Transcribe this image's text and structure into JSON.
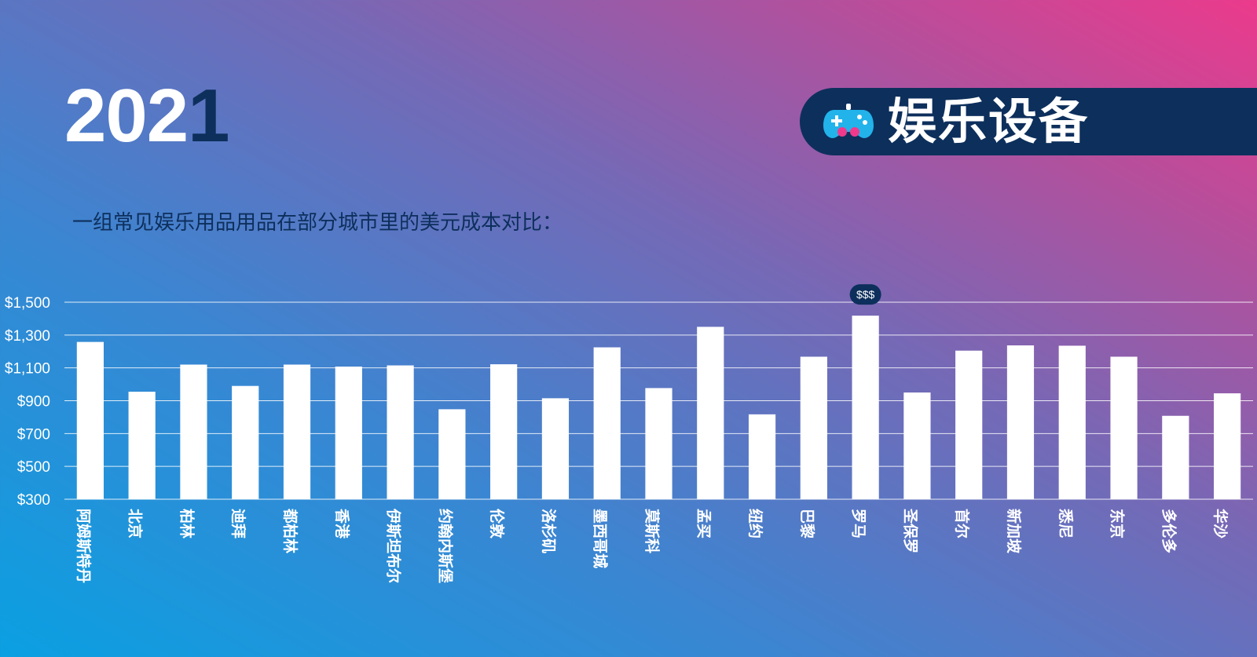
{
  "header": {
    "year_main": "202",
    "year_last": "1",
    "category_icon": "gamepad-icon",
    "category_title": "娱乐设备",
    "subtitle": "一组常见娱乐用品用品在部分城市里的美元成本对比："
  },
  "colors": {
    "navy": "#0d2f5c",
    "bar": "#ffffff",
    "gradient_start": "#0aa0e2",
    "gradient_end": "#ec3a8c",
    "icon_blue": "#22b3ea",
    "icon_pink": "#ef3a8c"
  },
  "chart_data": {
    "type": "bar",
    "title": "",
    "xlabel": "",
    "ylabel": "",
    "ylim": [
      300,
      1500
    ],
    "yticks": [
      300,
      500,
      700,
      900,
      1100,
      1300,
      1500
    ],
    "ytick_labels": [
      "$300",
      "$500",
      "$700",
      "$900",
      "$1,100",
      "$1,300",
      "$1,500"
    ],
    "grid": true,
    "categories": [
      "阿姆斯特丹",
      "北京",
      "柏林",
      "迪拜",
      "都柏林",
      "香港",
      "伊斯坦布尔",
      "约翰内斯堡",
      "伦敦",
      "洛杉矶",
      "墨西哥城",
      "莫斯科",
      "孟买",
      "纽约",
      "巴黎",
      "罗马",
      "圣保罗",
      "首尔",
      "新加坡",
      "悉尼",
      "东京",
      "多伦多",
      "华沙"
    ],
    "values": [
      1258,
      955,
      1120,
      990,
      1120,
      1108,
      1115,
      848,
      1122,
      915,
      1225,
      977,
      1350,
      817,
      1168,
      1418,
      950,
      1205,
      1237,
      1235,
      1168,
      808,
      945
    ],
    "annotation": {
      "category": "罗马",
      "label": "$$$"
    }
  }
}
